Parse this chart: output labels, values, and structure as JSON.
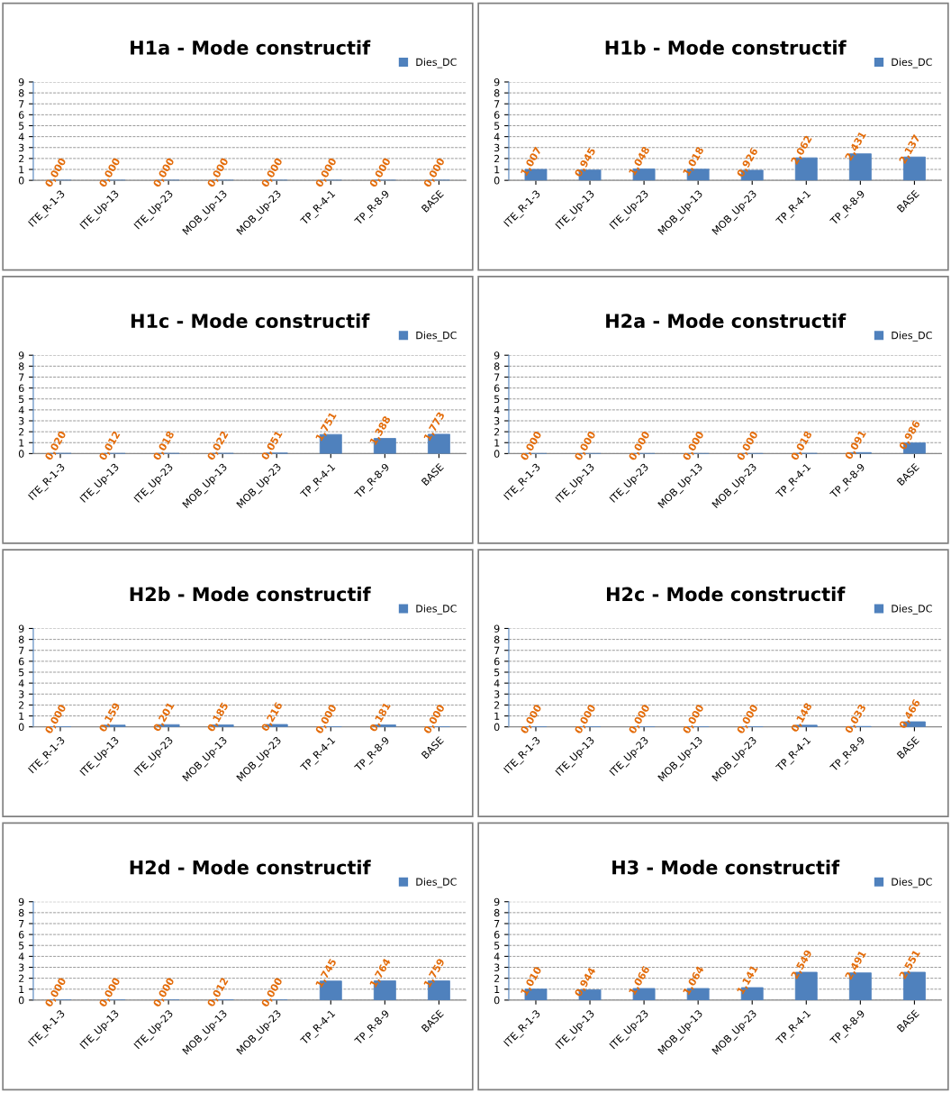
{
  "chart_data": [
    {
      "type": "bar",
      "title": "H1a - Mode constructif",
      "categories": [
        "ITE_R-1-3",
        "ITE_Up-13",
        "ITE_Up-23",
        "MOB_Up-13",
        "MOB_Up-23",
        "TP_R-4-1",
        "TP_R-8-9",
        "BASE"
      ],
      "ylim": [
        0,
        9
      ],
      "yticks": [
        0,
        1,
        2,
        3,
        4,
        5,
        6,
        7,
        8,
        9
      ],
      "grid": "y",
      "legend": "top right",
      "series": [
        {
          "name": "Dies_DC",
          "color": "#4f81bd",
          "values": [
            0,
            0,
            0,
            0,
            0,
            0,
            0,
            0
          ],
          "value_labels": [
            "0,000",
            "0,000",
            "0,000",
            "0,000",
            "0,000",
            "0,000",
            "0,000",
            "0,000"
          ]
        }
      ]
    },
    {
      "type": "bar",
      "title": "H1b - Mode constructif",
      "categories": [
        "ITE_R-1-3",
        "ITE_Up-13",
        "ITE_Up-23",
        "MOB_Up-13",
        "MOB_Up-23",
        "TP_R-4-1",
        "TP_R-8-9",
        "BASE"
      ],
      "ylim": [
        0,
        9
      ],
      "yticks": [
        0,
        1,
        2,
        3,
        4,
        5,
        6,
        7,
        8,
        9
      ],
      "grid": "y",
      "legend": "top right",
      "series": [
        {
          "name": "Dies_DC",
          "color": "#4f81bd",
          "values": [
            1.007,
            0.945,
            1.048,
            1.018,
            0.926,
            2.062,
            2.431,
            2.137
          ],
          "value_labels": [
            "1,007",
            "0,945",
            "1,048",
            "1,018",
            "0,926",
            "2,062",
            "2,431",
            "2,137"
          ]
        }
      ]
    },
    {
      "type": "bar",
      "title": "H1c - Mode constructif",
      "categories": [
        "ITE_R-1-3",
        "ITE_Up-13",
        "ITE_Up-23",
        "MOB_Up-13",
        "MOB_Up-23",
        "TP_R-4-1",
        "TP_R-8-9",
        "BASE"
      ],
      "ylim": [
        0,
        9
      ],
      "yticks": [
        0,
        1,
        2,
        3,
        4,
        5,
        6,
        7,
        8,
        9
      ],
      "grid": "y",
      "legend": "top right",
      "series": [
        {
          "name": "Dies_DC",
          "color": "#4f81bd",
          "values": [
            0.02,
            0.012,
            0.018,
            0.022,
            0.051,
            1.751,
            1.388,
            1.773
          ],
          "value_labels": [
            "0,020",
            "0,012",
            "0,018",
            "0,022",
            "0,051",
            "1,751",
            "1,388",
            "1,773"
          ]
        }
      ]
    },
    {
      "type": "bar",
      "title": "H2a - Mode constructif",
      "categories": [
        "ITE_R-1-3",
        "ITE_Up-13",
        "ITE_Up-23",
        "MOB_Up-13",
        "MOB_Up-23",
        "TP_R-4-1",
        "TP_R-8-9",
        "BASE"
      ],
      "ylim": [
        0,
        9
      ],
      "yticks": [
        0,
        1,
        2,
        3,
        4,
        5,
        6,
        7,
        8,
        9
      ],
      "grid": "y",
      "legend": "top right",
      "series": [
        {
          "name": "Dies_DC",
          "color": "#4f81bd",
          "values": [
            0,
            0,
            0,
            0,
            0,
            0.018,
            0.091,
            0.986
          ],
          "value_labels": [
            "0,000",
            "0,000",
            "0,000",
            "0,000",
            "0,000",
            "0,018",
            "0,091",
            "0,986"
          ]
        }
      ]
    },
    {
      "type": "bar",
      "title": "H2b - Mode constructif",
      "categories": [
        "ITE_R-1-3",
        "ITE_Up-13",
        "ITE_Up-23",
        "MOB_Up-13",
        "MOB_Up-23",
        "TP_R-4-1",
        "TP_R-8-9",
        "BASE"
      ],
      "ylim": [
        0,
        9
      ],
      "yticks": [
        0,
        1,
        2,
        3,
        4,
        5,
        6,
        7,
        8,
        9
      ],
      "grid": "y",
      "legend": "top right",
      "series": [
        {
          "name": "Dies_DC",
          "color": "#4f81bd",
          "values": [
            0,
            0.159,
            0.201,
            0.185,
            0.216,
            0,
            0.181,
            0
          ],
          "value_labels": [
            "0,000",
            "0,159",
            "0,201",
            "0,185",
            "0,216",
            "0,000",
            "0,181",
            "0,000"
          ]
        }
      ]
    },
    {
      "type": "bar",
      "title": "H2c - Mode constructif",
      "categories": [
        "ITE_R-1-3",
        "ITE_Up-13",
        "ITE_Up-23",
        "MOB_Up-13",
        "MOB_Up-23",
        "TP_R-4-1",
        "TP_R-8-9",
        "BASE"
      ],
      "ylim": [
        0,
        9
      ],
      "yticks": [
        0,
        1,
        2,
        3,
        4,
        5,
        6,
        7,
        8,
        9
      ],
      "grid": "y",
      "legend": "top right",
      "series": [
        {
          "name": "Dies_DC",
          "color": "#4f81bd",
          "values": [
            0,
            0,
            0,
            0,
            0,
            0.148,
            0.033,
            0.466
          ],
          "value_labels": [
            "0,000",
            "0,000",
            "0,000",
            "0,000",
            "0,000",
            "0,148",
            "0,033",
            "0,466"
          ]
        }
      ]
    },
    {
      "type": "bar",
      "title": "H2d - Mode constructif",
      "categories": [
        "ITE_R-1-3",
        "ITE_Up-13",
        "ITE_Up-23",
        "MOB_Up-13",
        "MOB_Up-23",
        "TP_R-4-1",
        "TP_R-8-9",
        "BASE"
      ],
      "ylim": [
        0,
        9
      ],
      "yticks": [
        0,
        1,
        2,
        3,
        4,
        5,
        6,
        7,
        8,
        9
      ],
      "grid": "y",
      "legend": "top right",
      "series": [
        {
          "name": "Dies_DC",
          "color": "#4f81bd",
          "values": [
            0,
            0,
            0,
            0.012,
            0,
            1.745,
            1.764,
            1.759
          ],
          "value_labels": [
            "0,000",
            "0,000",
            "0,000",
            "0,012",
            "0,000",
            "1,745",
            "1,764",
            "1,759"
          ]
        }
      ]
    },
    {
      "type": "bar",
      "title": "H3 - Mode constructif",
      "categories": [
        "ITE_R-1-3",
        "ITE_Up-13",
        "ITE_Up-23",
        "MOB_Up-13",
        "MOB_Up-23",
        "TP_R-4-1",
        "TP_R-8-9",
        "BASE"
      ],
      "ylim": [
        0,
        9
      ],
      "yticks": [
        0,
        1,
        2,
        3,
        4,
        5,
        6,
        7,
        8,
        9
      ],
      "grid": "y",
      "legend": "top right",
      "series": [
        {
          "name": "Dies_DC",
          "color": "#4f81bd",
          "values": [
            1.01,
            0.944,
            1.066,
            1.064,
            1.141,
            2.549,
            2.491,
            2.551
          ],
          "value_labels": [
            "1,010",
            "0,944",
            "1,066",
            "1,064",
            "1,141",
            "2,549",
            "2,491",
            "2,551"
          ]
        }
      ]
    }
  ]
}
